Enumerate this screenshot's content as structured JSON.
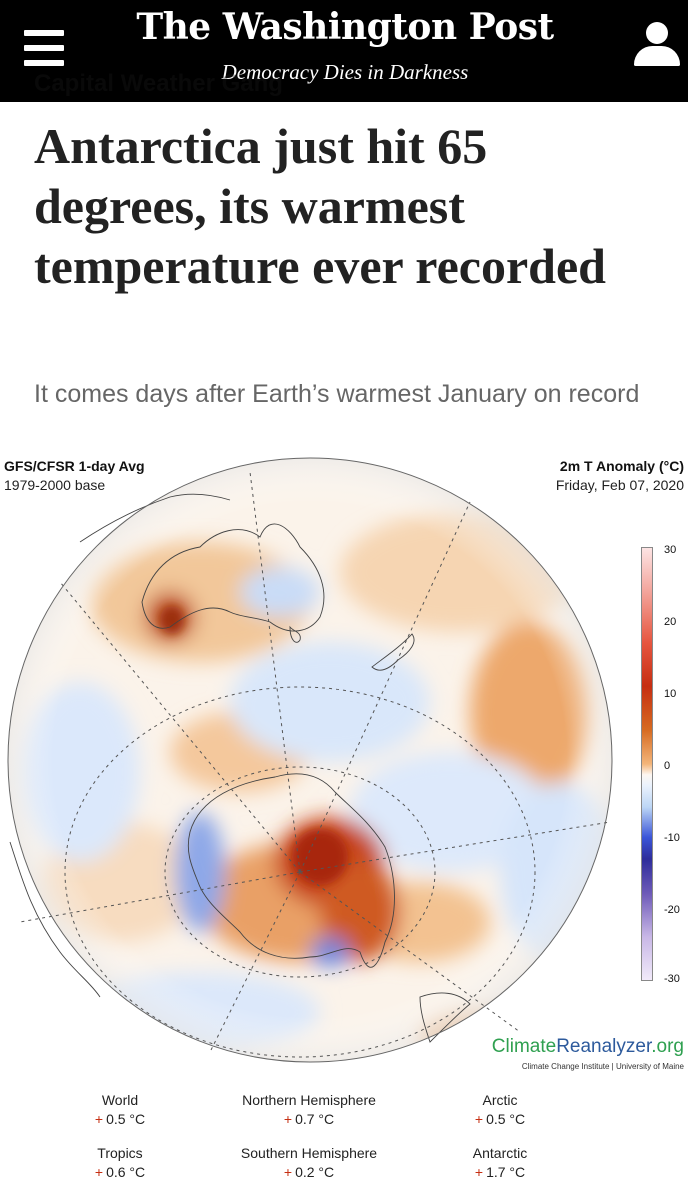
{
  "header": {
    "masthead": "The Washington Post",
    "tagline": "Democracy Dies in Darkness",
    "section": "Capital Weather Gang"
  },
  "article": {
    "headline": "Antarctica just hit 65 degrees, its warmest temperature ever recorded",
    "subhead": "It comes days after Earth’s warmest January on record"
  },
  "figure": {
    "top_left_title": "GFS/CFSR 1-day Avg",
    "top_left_sub": "1979-2000 base",
    "top_right_title": "2m T Anomaly (°C)",
    "top_right_sub": "Friday, Feb 07, 2020",
    "colorbar_ticks": [
      "30",
      "20",
      "10",
      "0",
      "-10",
      "-20",
      "-30"
    ],
    "brand_climate": "Climate",
    "brand_reanalyzer": "Reanalyzer",
    "brand_org": ".org",
    "brand_sub": "Climate Change Institute | University of Maine",
    "stats": [
      {
        "label": "World",
        "value": "0.5 °C"
      },
      {
        "label": "Northern Hemisphere",
        "value": "0.7 °C"
      },
      {
        "label": "Arctic",
        "value": "0.5 °C"
      },
      {
        "label": "Tropics",
        "value": "0.6 °C"
      },
      {
        "label": "Southern Hemisphere",
        "value": "0.2 °C"
      },
      {
        "label": "Antarctic",
        "value": "1.7 °C"
      }
    ],
    "plus_sign": "+"
  },
  "colors": {
    "header_bg": "#000000",
    "warm_anomaly": "#c62e12",
    "cool_anomaly": "#3b55d8",
    "brand_green": "#2fa050",
    "brand_blue": "#2d5a9c"
  },
  "icons": {
    "menu": "hamburger-menu-icon",
    "user": "user-account-icon"
  }
}
